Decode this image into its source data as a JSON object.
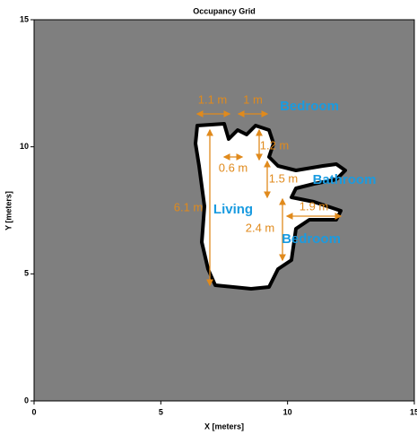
{
  "chart_data": {
    "type": "occupancy-grid",
    "title": "Occupancy Grid",
    "x_label": "X [meters]",
    "y_label": "Y [meters]",
    "xlim": [
      0,
      15
    ],
    "ylim": [
      0,
      15
    ],
    "xticks": [
      0,
      5,
      10,
      15
    ],
    "yticks": [
      0,
      5,
      10,
      15
    ],
    "annotations": [
      "1.1 m",
      "1 m",
      "Bedroom",
      "1.2 m",
      "0.6 m",
      "1.5 m",
      "Bathroom",
      "6.1 m",
      "Living",
      "1.9 m",
      "2.4 m",
      "Bedroom"
    ]
  }
}
